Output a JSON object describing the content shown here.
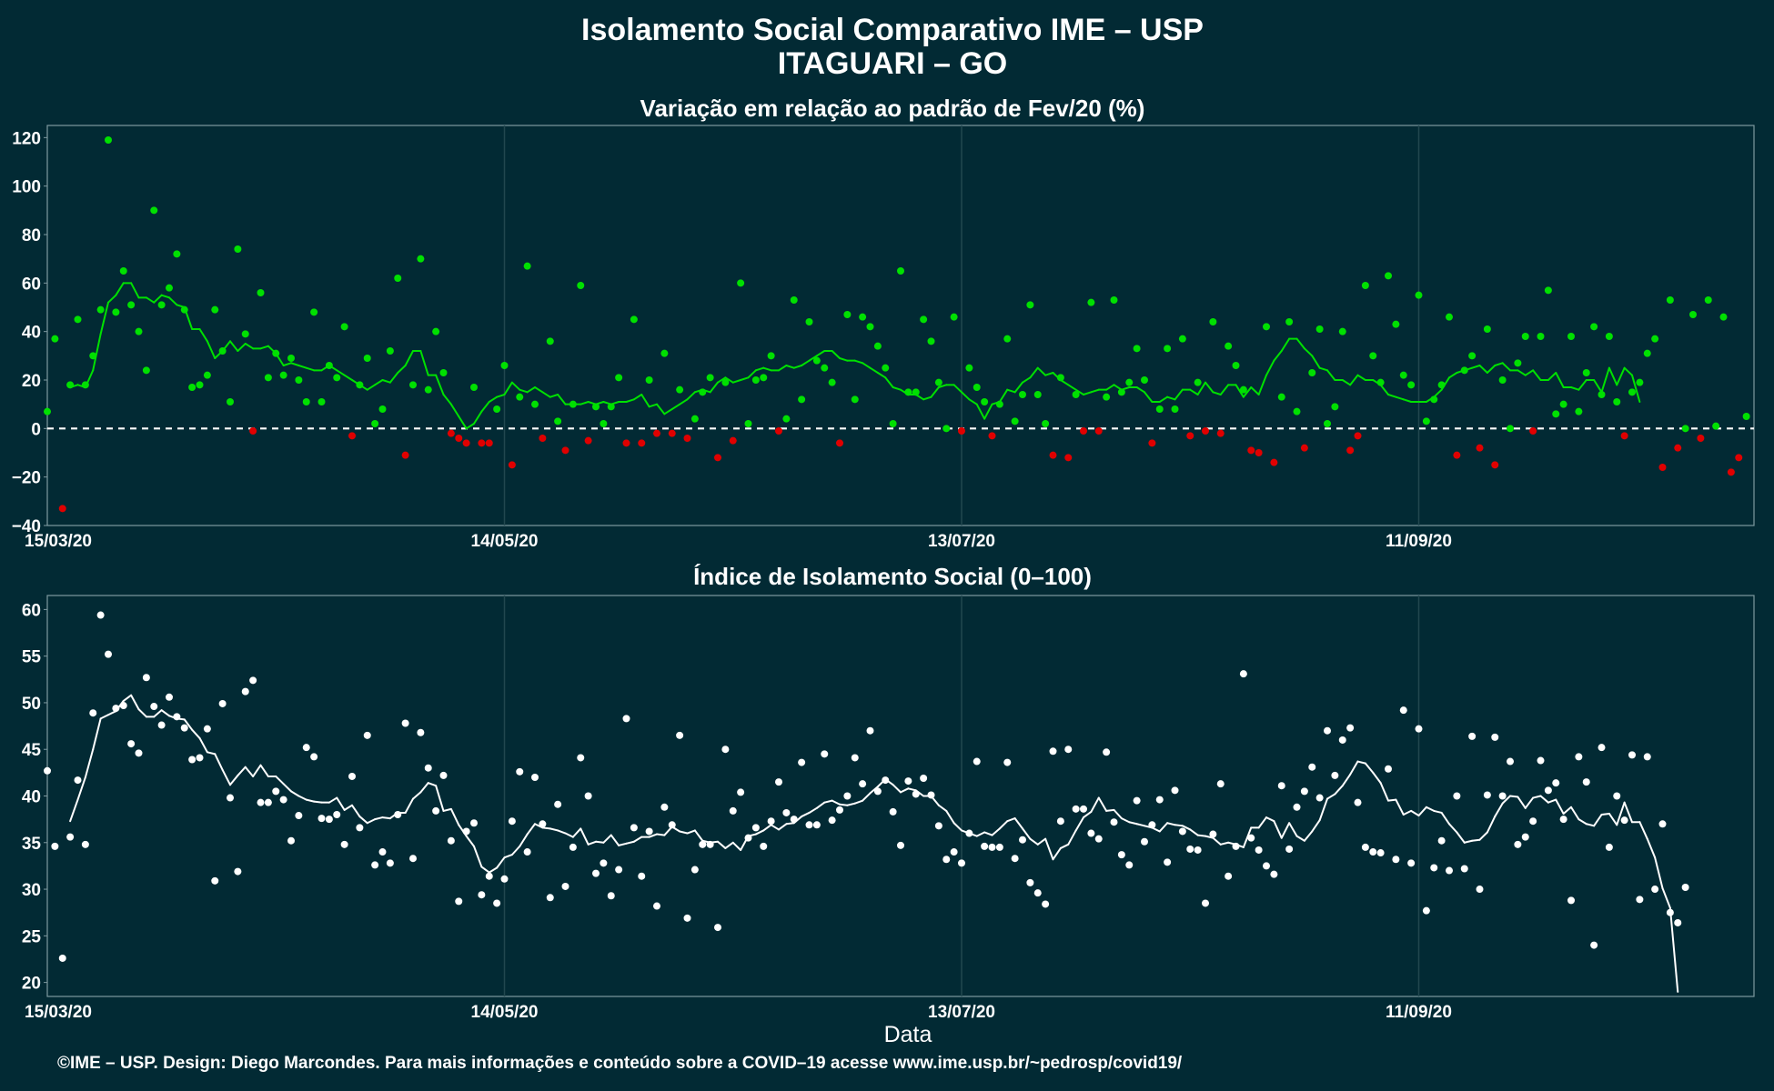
{
  "title_line1": "Isolamento Social Comparativo IME – USP",
  "title_line2": "ITAGUARI – GO",
  "footer": "©IME – USP. Design: Diego Marcondes. Para mais informações e conteúdo sobre a COVID–19 acesse www.ime.usp.br/~pedrosp/covid19/",
  "colors": {
    "background": "#022a34",
    "positive": "#00e000",
    "negative": "#e00000",
    "index": "#ffffff",
    "panel_border": "#7f9aa0",
    "grid": "#21474f"
  },
  "chart_data": [
    {
      "type": "scatter",
      "title": "Variação em relação ao padrão de Fev/20 (%)",
      "xlabel": "",
      "ylabel": "",
      "xlim": [
        "15/03/20",
        "25/10/20"
      ],
      "ylim": [
        -40,
        125
      ],
      "yticks": [
        -40,
        -20,
        0,
        20,
        40,
        60,
        80,
        100,
        120
      ],
      "xticks": [
        "15/03/20",
        "14/05/20",
        "13/07/20",
        "11/09/20"
      ],
      "reference_line": 0,
      "grid": true,
      "legend": "none",
      "color_rule": "green when value >= 0, red when value < 0",
      "series": [
        {
          "name": "",
          "style": "points",
          "start": "15/03/20",
          "values": [
            7,
            37,
            -33,
            18,
            45,
            18,
            30,
            49,
            119,
            48,
            65,
            51,
            40,
            24,
            90,
            51,
            58,
            72,
            49,
            17,
            18,
            22,
            49,
            32,
            11,
            74,
            39,
            -1,
            56,
            21,
            31,
            22,
            29,
            20,
            11,
            48,
            11,
            26,
            21,
            42,
            -3,
            18,
            29,
            2,
            8,
            32,
            62,
            -11,
            18,
            70,
            16,
            40,
            23,
            -2,
            -4,
            -6,
            17,
            -6,
            -6,
            8,
            26,
            -15,
            13,
            67,
            10,
            -4,
            36,
            3,
            -9,
            10,
            59,
            -5,
            9,
            2,
            9,
            21,
            -6,
            45,
            -6,
            20,
            -2,
            31,
            -2,
            16,
            -4,
            4,
            15,
            21,
            -12,
            19,
            -5,
            60,
            2,
            20,
            21,
            30,
            -1,
            4,
            53,
            12,
            44,
            28,
            25,
            19,
            -6,
            47,
            12,
            46,
            42,
            34,
            25,
            2,
            65,
            15,
            15,
            45,
            36,
            19,
            0,
            46,
            -1,
            25,
            17,
            11,
            -3,
            10,
            37,
            3,
            14,
            51,
            14,
            2,
            -11,
            21,
            -12,
            14,
            -1,
            52,
            -1,
            13,
            53,
            15,
            19,
            33,
            20,
            -6,
            8,
            33,
            8,
            37,
            -3,
            19,
            -1,
            44,
            -2,
            34,
            26,
            16,
            -9,
            -10,
            42,
            -14,
            13,
            44,
            7,
            -8,
            23,
            41,
            2,
            9,
            40,
            -9,
            -3,
            59,
            30,
            19,
            63,
            43,
            22,
            18,
            55,
            3,
            12,
            18,
            46,
            -11,
            24,
            30,
            -8,
            41,
            -15,
            20,
            0,
            27,
            38,
            -1,
            38,
            57,
            6,
            10,
            38,
            7,
            23,
            42,
            14,
            38,
            11,
            -3,
            15,
            19,
            31,
            37,
            -16,
            53,
            -8,
            0,
            47,
            -4,
            53,
            1,
            46,
            -18,
            -12,
            5
          ]
        },
        {
          "name": "",
          "style": "line",
          "start": "18/03/20",
          "values": [
            17,
            18,
            17,
            24,
            39,
            52,
            55,
            60,
            60,
            54,
            54,
            52,
            55,
            54,
            51,
            50,
            41,
            41,
            36,
            29,
            32,
            36,
            32,
            35,
            33,
            33,
            34,
            31,
            26,
            27,
            26,
            25,
            24,
            24,
            26,
            24,
            22,
            20,
            18,
            16,
            18,
            20,
            19,
            23,
            26,
            32,
            32,
            22,
            22,
            14,
            10,
            5,
            0,
            2,
            7,
            11,
            13,
            14,
            19,
            16,
            15,
            17,
            15,
            13,
            14,
            10,
            10,
            10,
            11,
            10,
            11,
            10,
            11,
            11,
            12,
            14,
            9,
            10,
            6,
            8,
            10,
            12,
            15,
            16,
            15,
            19,
            21,
            19,
            20,
            21,
            24,
            25,
            24,
            24,
            26,
            25,
            26,
            28,
            30,
            32,
            32,
            29,
            28,
            28,
            27,
            25,
            23,
            21,
            17,
            16,
            14,
            14,
            12,
            13,
            17,
            18,
            18,
            15,
            12,
            10,
            4,
            10,
            11,
            16,
            15,
            19,
            21,
            25,
            22,
            23,
            20,
            18,
            16,
            14,
            15,
            16,
            16,
            18,
            16,
            17,
            17,
            15,
            11,
            11,
            13,
            12,
            16,
            16,
            14,
            19,
            15,
            14,
            18,
            18,
            13,
            17,
            14,
            22,
            28,
            32,
            37,
            37,
            33,
            30,
            25,
            24,
            20,
            20,
            18,
            22,
            20,
            20,
            18,
            14,
            13,
            12,
            11,
            11,
            11,
            13,
            16,
            21,
            23,
            24,
            25,
            26,
            23,
            26,
            27,
            24,
            24,
            22,
            24,
            20,
            20,
            23,
            17,
            17,
            16,
            20,
            20,
            15,
            25,
            18,
            25,
            22,
            11
          ]
        }
      ]
    },
    {
      "type": "scatter",
      "title": "Índice de Isolamento Social (0–100)",
      "xlabel": "Data",
      "ylabel": "",
      "xlim": [
        "15/03/20",
        "25/10/20"
      ],
      "ylim": [
        18.5,
        61.5
      ],
      "yticks": [
        20,
        25,
        30,
        35,
        40,
        45,
        50,
        55,
        60
      ],
      "xticks": [
        "15/03/20",
        "14/05/20",
        "13/07/20",
        "11/09/20"
      ],
      "grid": true,
      "legend": "none",
      "series": [
        {
          "name": "",
          "style": "points",
          "start": "15/03/20",
          "values": [
            42.7,
            34.6,
            22.6,
            35.6,
            41.7,
            34.8,
            48.9,
            59.4,
            55.2,
            49.4,
            49.7,
            45.6,
            44.6,
            52.7,
            49.6,
            47.6,
            50.6,
            48.5,
            47.3,
            43.9,
            44.1,
            47.2,
            30.9,
            49.9,
            39.8,
            31.9,
            51.2,
            52.4,
            39.3,
            39.3,
            40.5,
            39.6,
            35.2,
            37.9,
            45.2,
            44.2,
            37.6,
            37.5,
            38.0,
            34.8,
            42.1,
            36.6,
            46.5,
            32.6,
            34.0,
            32.8,
            38.0,
            47.8,
            33.3,
            46.8,
            43.0,
            38.4,
            42.2,
            35.2,
            28.7,
            36.2,
            37.1,
            29.4,
            31.4,
            28.5,
            31.1,
            37.3,
            42.6,
            34.0,
            42.0,
            37.0,
            29.1,
            39.1,
            30.3,
            34.5,
            44.1,
            40.0,
            31.7,
            32.8,
            29.3,
            32.1,
            48.3,
            36.6,
            31.4,
            36.2,
            28.2,
            38.8,
            36.9,
            46.5,
            26.9,
            32.1,
            34.8,
            34.8,
            25.9,
            45.0,
            38.4,
            40.4,
            35.5,
            36.6,
            34.6,
            37.3,
            41.5,
            38.2,
            37.5,
            43.6,
            36.9,
            36.9,
            44.5,
            37.4,
            38.5,
            40.0,
            44.1,
            41.3,
            47.0,
            40.5,
            41.7,
            38.3,
            34.7,
            41.6,
            40.2,
            41.9,
            40.1,
            36.8,
            33.2,
            34.0,
            32.8,
            36.0,
            43.7,
            34.6,
            34.5,
            34.5,
            43.6,
            33.3,
            35.3,
            30.7,
            29.6,
            28.4,
            44.8,
            37.3,
            45.0,
            38.6,
            38.6,
            36.0,
            35.4,
            44.7,
            37.2,
            33.7,
            32.6,
            39.5,
            35.1,
            36.9,
            39.6,
            32.9,
            40.6,
            36.2,
            34.3,
            34.2,
            28.5,
            35.9,
            41.3,
            31.4,
            34.6,
            53.1,
            35.5,
            34.2,
            32.5,
            31.6,
            41.1,
            34.3,
            38.8,
            40.5,
            43.1,
            39.8,
            47.0,
            42.2,
            46.0,
            47.3,
            39.3,
            34.5,
            34.0,
            33.9,
            42.9,
            33.2,
            49.2,
            32.8,
            47.2,
            27.7,
            32.3,
            35.2,
            32.0,
            40.0,
            32.2,
            46.4,
            30.0,
            40.1,
            46.3,
            40.0,
            43.7,
            34.8,
            35.6,
            37.3,
            43.8,
            40.6,
            41.4,
            37.5,
            28.8,
            44.2,
            41.5,
            24.0,
            45.2,
            34.5,
            40.0,
            37.4,
            44.4,
            28.9,
            44.2,
            30.0,
            37.0,
            27.5,
            26.4,
            30.2
          ]
        },
        {
          "name": "",
          "style": "line",
          "start": "18/03/20",
          "values": [
            37.3,
            39.6,
            42.0,
            45.0,
            48.3,
            48.7,
            49.1,
            50.2,
            50.8,
            49.3,
            48.5,
            48.5,
            49.2,
            48.6,
            48.3,
            48.2,
            47.1,
            46.2,
            44.7,
            44.5,
            42.8,
            41.2,
            42.2,
            43.1,
            42.1,
            43.3,
            42.1,
            42.1,
            41.3,
            40.5,
            40.0,
            39.6,
            39.4,
            39.3,
            39.3,
            39.8,
            38.5,
            39.0,
            37.8,
            37.1,
            37.5,
            37.7,
            37.6,
            38.2,
            38.2,
            39.7,
            40.4,
            41.4,
            41.1,
            38.4,
            38.6,
            36.9,
            35.7,
            34.6,
            32.4,
            31.8,
            32.3,
            33.4,
            33.7,
            34.6,
            35.9,
            37.0,
            36.6,
            36.5,
            36.3,
            36.0,
            35.6,
            36.5,
            34.8,
            35.1,
            35.0,
            35.8,
            34.7,
            34.9,
            35.1,
            35.6,
            35.6,
            35.9,
            35.8,
            36.7,
            36.2,
            36.0,
            36.3,
            35.2,
            35.0,
            35.1,
            34.4,
            35.0,
            34.2,
            35.7,
            35.9,
            36.3,
            36.9,
            36.4,
            37.0,
            37.1,
            37.8,
            38.2,
            38.7,
            39.3,
            39.5,
            39.1,
            39.0,
            39.2,
            39.5,
            40.3,
            41.0,
            41.8,
            41.2,
            40.4,
            40.8,
            40.6,
            40.0,
            40.0,
            39.0,
            38.4,
            37.1,
            36.3,
            36.0,
            35.7,
            36.1,
            35.8,
            36.5,
            37.3,
            37.6,
            36.5,
            35.4,
            34.8,
            35.4,
            33.2,
            34.4,
            34.8,
            36.3,
            37.7,
            38.3,
            39.8,
            38.4,
            38.5,
            37.6,
            37.2,
            37.0,
            36.8,
            36.6,
            36.2,
            37.1,
            36.9,
            36.8,
            36.4,
            35.8,
            35.7,
            35.5,
            34.8,
            35.0,
            34.8,
            34.5,
            36.6,
            36.6,
            37.7,
            37.3,
            35.5,
            37.1,
            35.7,
            35.2,
            36.2,
            37.4,
            39.7,
            40.2,
            41.1,
            42.3,
            43.7,
            43.5,
            42.5,
            41.4,
            39.5,
            39.6,
            38.0,
            38.4,
            37.9,
            38.8,
            38.4,
            38.2,
            37.0,
            36.1,
            35.0,
            35.2,
            35.3,
            36.1,
            37.8,
            39.2,
            40.0,
            39.9,
            38.7,
            39.8,
            40.0,
            39.3,
            39.6,
            38.1,
            38.8,
            37.5,
            37.0,
            36.8,
            38.0,
            38.1,
            36.9,
            39.3,
            37.2,
            37.2,
            35.4,
            33.4,
            30.1,
            28.0,
            19.0
          ]
        }
      ]
    }
  ]
}
